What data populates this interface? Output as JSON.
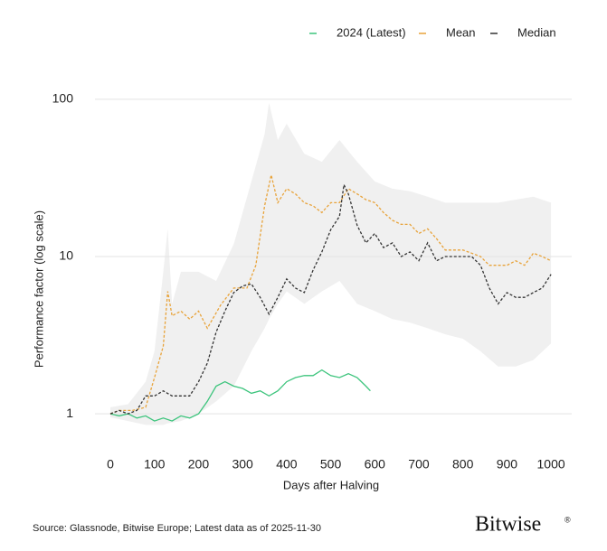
{
  "chart_data": {
    "type": "line",
    "y_label": "Performance factor (log scale)",
    "x_label": "Days after Halving",
    "source": "Source: Glassnode, Bitwise Europe; Latest data as of 2025-11-30",
    "logo": "Bitwise",
    "logo_mark": "®",
    "log_scale": true,
    "grid": true,
    "legend_position": "top-right",
    "xlim": [
      -35,
      1047
    ],
    "ylim": [
      0.8,
      130
    ],
    "xticks": [
      0,
      100,
      200,
      300,
      400,
      500,
      600,
      700,
      800,
      900,
      1000
    ],
    "yticks": [
      1,
      10,
      100
    ],
    "band": {
      "color": "#f0f0f0",
      "x": [
        0,
        40,
        80,
        100,
        120,
        130,
        140,
        160,
        200,
        240,
        280,
        320,
        350,
        360,
        380,
        400,
        440,
        480,
        520,
        560,
        600,
        640,
        680,
        720,
        760,
        800,
        840,
        880,
        920,
        960,
        1000
      ],
      "upper": [
        1.1,
        1.15,
        1.6,
        2.5,
        8,
        15,
        5,
        8,
        8,
        7,
        12,
        30,
        60,
        95,
        55,
        70,
        45,
        40,
        55,
        40,
        30,
        27,
        26,
        24,
        22,
        22,
        22,
        22,
        23,
        24,
        22
      ],
      "lower": [
        0.95,
        0.9,
        0.85,
        0.85,
        0.85,
        0.87,
        0.88,
        0.9,
        1.0,
        1.2,
        1.5,
        2.5,
        3.5,
        4,
        5,
        6,
        5,
        6,
        7,
        5,
        4.5,
        4,
        3.8,
        3.5,
        3.2,
        3,
        2.5,
        2,
        2,
        2.2,
        2.8
      ]
    },
    "series": [
      {
        "name": "2024 (Latest)",
        "color": "#3cc47c",
        "dashed": false,
        "x": [
          0,
          20,
          40,
          60,
          80,
          100,
          120,
          140,
          160,
          180,
          200,
          220,
          240,
          260,
          280,
          300,
          320,
          340,
          360,
          380,
          400,
          420,
          440,
          460,
          480,
          500,
          520,
          540,
          560,
          580,
          590
        ],
        "values": [
          1.0,
          0.97,
          1.0,
          0.94,
          0.97,
          0.9,
          0.94,
          0.9,
          0.97,
          0.94,
          1.0,
          1.2,
          1.5,
          1.6,
          1.5,
          1.45,
          1.35,
          1.4,
          1.3,
          1.4,
          1.6,
          1.7,
          1.75,
          1.75,
          1.9,
          1.75,
          1.7,
          1.8,
          1.7,
          1.5,
          1.4
        ]
      },
      {
        "name": "Mean",
        "color": "#e8a33a",
        "dashed": true,
        "x": [
          0,
          20,
          50,
          80,
          100,
          120,
          130,
          140,
          160,
          180,
          200,
          220,
          250,
          280,
          310,
          330,
          350,
          365,
          380,
          400,
          420,
          440,
          460,
          480,
          500,
          520,
          540,
          560,
          580,
          600,
          620,
          640,
          660,
          680,
          700,
          720,
          740,
          760,
          780,
          800,
          820,
          840,
          860,
          880,
          900,
          920,
          940,
          960,
          980,
          1000
        ],
        "values": [
          1.0,
          1.05,
          1.05,
          1.1,
          1.7,
          2.7,
          6,
          4.2,
          4.5,
          4,
          4.5,
          3.5,
          4.9,
          6.3,
          6.3,
          8.8,
          21,
          33,
          22,
          27,
          25,
          22,
          21,
          19,
          22,
          22,
          27,
          25,
          23,
          22,
          19,
          17,
          16,
          16,
          14,
          15,
          13,
          11,
          11,
          11,
          10.5,
          10,
          8.8,
          8.8,
          8.8,
          9.4,
          8.8,
          10.5,
          10,
          9.4
        ]
      },
      {
        "name": "Median",
        "color": "#333333",
        "dashed": true,
        "x": [
          0,
          20,
          40,
          60,
          80,
          100,
          120,
          140,
          160,
          180,
          200,
          220,
          240,
          260,
          280,
          300,
          320,
          340,
          360,
          380,
          400,
          420,
          440,
          460,
          480,
          500,
          520,
          530,
          540,
          560,
          580,
          600,
          620,
          640,
          660,
          680,
          700,
          720,
          740,
          760,
          780,
          800,
          820,
          840,
          860,
          880,
          900,
          920,
          940,
          960,
          980,
          1000
        ],
        "values": [
          1.0,
          1.05,
          1.0,
          1.05,
          1.3,
          1.3,
          1.4,
          1.3,
          1.3,
          1.3,
          1.6,
          2.1,
          3.3,
          4.5,
          5.9,
          6.5,
          6.7,
          5.5,
          4.3,
          5.5,
          7.2,
          6.3,
          5.9,
          8.2,
          10.7,
          14.8,
          18,
          28.6,
          25,
          15.8,
          12.2,
          14,
          11.4,
          12.2,
          10,
          10.7,
          9.4,
          12.2,
          9.4,
          10,
          10,
          10,
          10,
          8.8,
          6.3,
          5,
          5.9,
          5.5,
          5.5,
          5.9,
          6.3,
          7.7
        ]
      }
    ]
  }
}
